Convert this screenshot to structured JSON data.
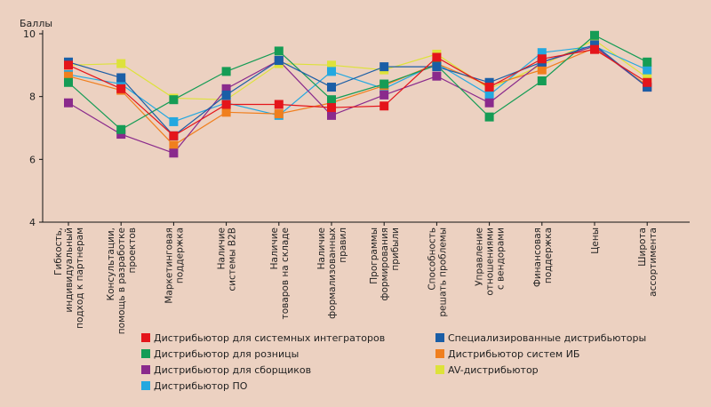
{
  "chart_data": {
    "type": "line",
    "ylabel": "Баллы",
    "ylim": [
      4,
      10
    ],
    "yticks": [
      4,
      6,
      8,
      10
    ],
    "categories": [
      [
        "Гибкость,",
        "индивидуальный",
        "подход к партнерам"
      ],
      [
        "Консультации,",
        "помощь в разработке",
        "проектов"
      ],
      [
        "Маркетинговая",
        "поддержка"
      ],
      [
        "Наличие",
        "системы B2B"
      ],
      [
        "Наличие",
        "товаров на складе"
      ],
      [
        "Наличие",
        "формализованных",
        "правил"
      ],
      [
        "Программы",
        "формирования",
        "прибыли"
      ],
      [
        "Способность",
        "решать проблемы"
      ],
      [
        "Управление",
        "отношениями",
        "с вендорами"
      ],
      [
        "Финансовая",
        "поддержка"
      ],
      [
        "Цены"
      ],
      [
        "Широта",
        "ассортимента"
      ]
    ],
    "legend_position": "bottom",
    "series": [
      {
        "name": "AV-дистрибьютор",
        "color": "#dde23a",
        "values": [
          9.0,
          9.05,
          7.95,
          7.9,
          9.05,
          9.0,
          8.85,
          9.35,
          8.25,
          9.0,
          9.8,
          8.6
        ]
      },
      {
        "name": "Дистрибьютор ПО",
        "color": "#24a8e0",
        "values": [
          8.7,
          8.4,
          7.2,
          7.8,
          7.4,
          8.8,
          8.25,
          9.05,
          8.05,
          9.4,
          9.6,
          8.85
        ]
      },
      {
        "name": "Дистрибьютор систем ИБ",
        "color": "#f07f1e",
        "values": [
          8.65,
          8.2,
          6.45,
          7.5,
          7.45,
          7.8,
          8.35,
          9.05,
          8.35,
          8.85,
          9.55,
          8.35
        ]
      },
      {
        "name": "Дистрибьютор для сборщиков",
        "color": "#8a2a8c",
        "values": [
          7.8,
          6.8,
          6.2,
          8.25,
          9.15,
          7.4,
          8.05,
          8.65,
          7.8,
          9.1,
          9.6,
          8.3
        ]
      },
      {
        "name": "Дистрибьютор для розницы",
        "color": "#159c55",
        "values": [
          8.45,
          6.95,
          7.9,
          8.8,
          9.45,
          7.9,
          8.4,
          9.0,
          7.35,
          8.5,
          9.95,
          9.1
        ]
      },
      {
        "name": "Специализированные дистрибьюторы",
        "color": "#1b5ea6",
        "values": [
          9.1,
          8.6,
          6.75,
          8.05,
          9.15,
          8.3,
          8.95,
          8.95,
          8.45,
          9.1,
          9.65,
          8.3
        ]
      },
      {
        "name": "Дистрибьютор для системных интеграторов",
        "color": "#e4151b",
        "values": [
          9.0,
          8.25,
          6.75,
          7.75,
          7.75,
          7.65,
          7.7,
          9.25,
          8.3,
          9.2,
          9.5,
          8.45
        ]
      }
    ],
    "legend": [
      {
        "name": "Дистрибьютор для системных интеграторов",
        "color": "#e4151b"
      },
      {
        "name": "Специализированные дистрибьюторы",
        "color": "#1b5ea6"
      },
      {
        "name": "Дистрибьютор для розницы",
        "color": "#159c55"
      },
      {
        "name": "Дистрибьютор систем ИБ",
        "color": "#f07f1e"
      },
      {
        "name": "Дистрибьютор для сборщиков",
        "color": "#8a2a8c"
      },
      {
        "name": "AV-дистрибьютор",
        "color": "#dde23a"
      },
      {
        "name": "Дистрибьютор ПО",
        "color": "#24a8e0"
      }
    ],
    "axis_color": "#111111",
    "background": "#ecd1c1"
  }
}
